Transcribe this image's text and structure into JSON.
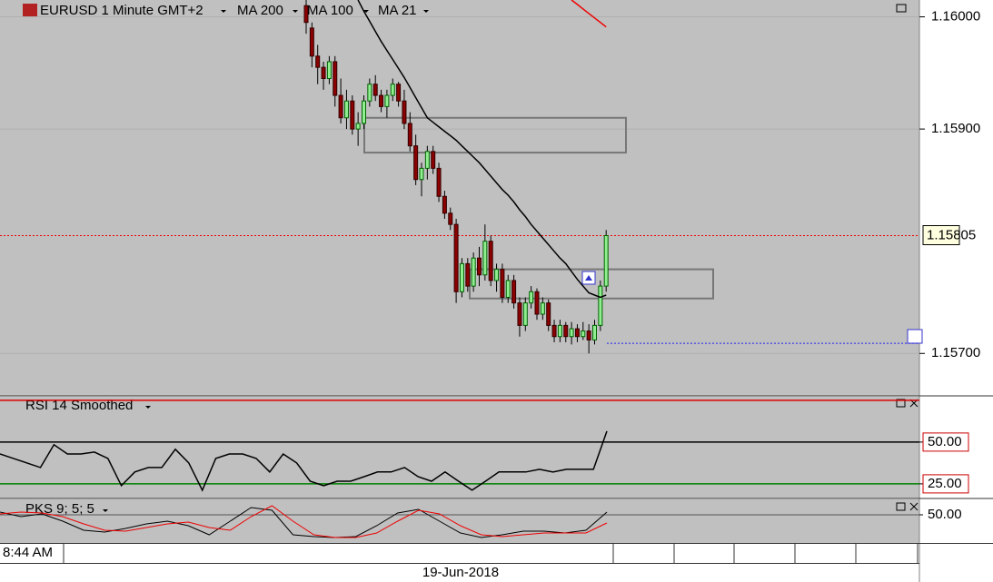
{
  "chart_data": [
    {
      "type": "candlestick",
      "title": "EURUSD 1 Minute GMT+2",
      "ohlc": [
        [
          1.1601,
          1.16015,
          1.15985,
          1.15995
        ],
        [
          1.1599,
          1.15995,
          1.15955,
          1.15965
        ],
        [
          1.15965,
          1.15975,
          1.1594,
          1.15955
        ],
        [
          1.15955,
          1.1596,
          1.15935,
          1.15945
        ],
        [
          1.15945,
          1.15965,
          1.1594,
          1.1596
        ],
        [
          1.1596,
          1.15965,
          1.1592,
          1.1593
        ],
        [
          1.1593,
          1.15945,
          1.15905,
          1.1591
        ],
        [
          1.1591,
          1.15935,
          1.159,
          1.15925
        ],
        [
          1.15925,
          1.1593,
          1.15895,
          1.159
        ],
        [
          1.159,
          1.15915,
          1.15885,
          1.15905
        ],
        [
          1.15905,
          1.1593,
          1.159,
          1.15925
        ],
        [
          1.15925,
          1.15945,
          1.1592,
          1.1594
        ],
        [
          1.1594,
          1.15948,
          1.15925,
          1.1593
        ],
        [
          1.1593,
          1.15935,
          1.15915,
          1.1592
        ],
        [
          1.1592,
          1.15935,
          1.1591,
          1.1593
        ],
        [
          1.1593,
          1.15945,
          1.15925,
          1.1594
        ],
        [
          1.1594,
          1.15942,
          1.1592,
          1.15925
        ],
        [
          1.15925,
          1.15935,
          1.159,
          1.15905
        ],
        [
          1.15905,
          1.15915,
          1.1588,
          1.15885
        ],
        [
          1.15885,
          1.15895,
          1.1585,
          1.15855
        ],
        [
          1.15855,
          1.1587,
          1.1584,
          1.15865
        ],
        [
          1.15865,
          1.15885,
          1.15855,
          1.1588
        ],
        [
          1.1588,
          1.15885,
          1.1586,
          1.15865
        ],
        [
          1.15865,
          1.1587,
          1.15835,
          1.1584
        ],
        [
          1.1584,
          1.15845,
          1.1582,
          1.15825
        ],
        [
          1.15825,
          1.1583,
          1.1581,
          1.15815
        ],
        [
          1.15815,
          1.1582,
          1.15745,
          1.15755
        ],
        [
          1.15755,
          1.15785,
          1.1575,
          1.1578
        ],
        [
          1.1578,
          1.15785,
          1.15755,
          1.1576
        ],
        [
          1.1576,
          1.1579,
          1.15755,
          1.15785
        ],
        [
          1.15785,
          1.15795,
          1.1576,
          1.1577
        ],
        [
          1.1577,
          1.15815,
          1.15765,
          1.158
        ],
        [
          1.158,
          1.15805,
          1.1576,
          1.15765
        ],
        [
          1.15765,
          1.1578,
          1.15755,
          1.15775
        ],
        [
          1.15775,
          1.1578,
          1.15745,
          1.1575
        ],
        [
          1.1575,
          1.1577,
          1.15745,
          1.15765
        ],
        [
          1.15765,
          1.1577,
          1.1574,
          1.15745
        ],
        [
          1.15745,
          1.1575,
          1.15715,
          1.15725
        ],
        [
          1.15725,
          1.1575,
          1.1572,
          1.15745
        ],
        [
          1.15745,
          1.1576,
          1.1574,
          1.15755
        ],
        [
          1.15755,
          1.15758,
          1.1573,
          1.15735
        ],
        [
          1.15735,
          1.1575,
          1.1573,
          1.15745
        ],
        [
          1.15745,
          1.15748,
          1.1572,
          1.15725
        ],
        [
          1.15725,
          1.1573,
          1.1571,
          1.15715
        ],
        [
          1.15715,
          1.1573,
          1.1571,
          1.15725
        ],
        [
          1.15725,
          1.15728,
          1.1571,
          1.15715
        ],
        [
          1.15715,
          1.15728,
          1.15708,
          1.15722
        ],
        [
          1.15722,
          1.15726,
          1.1571,
          1.15715
        ],
        [
          1.15715,
          1.15728,
          1.15712,
          1.1572
        ],
        [
          1.1572,
          1.15726,
          1.157,
          1.15712
        ],
        [
          1.15712,
          1.1573,
          1.15708,
          1.15725
        ],
        [
          1.15725,
          1.15765,
          1.1572,
          1.1576
        ],
        [
          1.1576,
          1.1581,
          1.15755,
          1.15805
        ]
      ],
      "up_color": "#90ee90",
      "down_color": "#8b0000",
      "series": [
        {
          "name": "MA 200",
          "color": "#00dd00"
        },
        {
          "name": "MA 100",
          "color": "#ee0000",
          "values": [
            null,
            null,
            null,
            null,
            null,
            null,
            null,
            null,
            null,
            null,
            null,
            null,
            null,
            null,
            null,
            null,
            null,
            null,
            null,
            null,
            null,
            null,
            null,
            null,
            null,
            null,
            null,
            null,
            null,
            null,
            null,
            null,
            null,
            null,
            null,
            null,
            null,
            null,
            null,
            null,
            null,
            null,
            null,
            null,
            null,
            null,
            1.16015,
            1.16011,
            1.16007,
            1.16003,
            1.15999,
            1.15995,
            1.15991
          ]
        },
        {
          "name": "MA 21",
          "color": "#000000",
          "values": [
            null,
            null,
            null,
            null,
            null,
            null,
            null,
            null,
            null,
            1.16015,
            1.16005,
            1.15996,
            1.15987,
            1.15978,
            1.1597,
            1.15962,
            1.15954,
            1.15946,
            1.15937,
            1.15928,
            1.15919,
            1.1591,
            1.15906,
            1.15902,
            1.15898,
            1.15894,
            1.1589,
            1.15885,
            1.1588,
            1.15875,
            1.1587,
            1.15864,
            1.15858,
            1.15852,
            1.15846,
            1.15841,
            1.15835,
            1.15828,
            1.15822,
            1.15815,
            1.15809,
            1.15803,
            1.15797,
            1.15791,
            1.15785,
            1.1578,
            1.15773,
            1.15766,
            1.1576,
            1.15754,
            1.15752,
            1.1575,
            1.15752
          ]
        }
      ],
      "ylim": [
        1.15663,
        1.16015
      ],
      "yticks": [
        {
          "value": 1.16,
          "label": "1.16000"
        },
        {
          "value": 1.159,
          "label": "1.15900"
        },
        {
          "value": 1.157,
          "label": "1.15700"
        }
      ],
      "last_price": {
        "value": 1.15805,
        "label": "1.15805"
      },
      "level": 1.15709,
      "boxes": [
        {
          "top": 1.1591,
          "bottom": 1.15879
        },
        {
          "top": 1.15775,
          "bottom": 1.15749
        }
      ],
      "time_label": "8:44 AM",
      "date_label": "19-Jun-2018"
    },
    {
      "type": "line",
      "title": "RSI 14 Smoothed",
      "values": [
        42.9,
        40.2,
        37.5,
        34.8,
        48.4,
        42.9,
        42.9,
        44.0,
        40.2,
        23.9,
        32.1,
        34.8,
        34.8,
        45.7,
        37.5,
        21.2,
        40.2,
        42.9,
        42.9,
        40.2,
        32.1,
        42.9,
        37.5,
        26.6,
        23.9,
        26.6,
        26.6,
        29.3,
        32.1,
        32.1,
        34.8,
        29.3,
        26.6,
        32.1,
        26.6,
        21.2,
        26.6,
        32.1,
        32.1,
        32.1,
        33.7,
        32.1,
        33.7,
        33.7,
        33.7,
        56.5
      ],
      "color": "#000000",
      "ylim": [
        16.8,
        77.1
      ],
      "yticks": [
        {
          "value": 50,
          "label": "50.00"
        },
        {
          "value": 25,
          "label": "25.00"
        }
      ],
      "levels": [
        {
          "value": 75,
          "color": "#dd0000"
        },
        {
          "value": 50,
          "color": "#000000"
        },
        {
          "value": 25,
          "color": "#008000"
        }
      ]
    },
    {
      "type": "line",
      "title": "PKS 9; 5; 5",
      "series": [
        {
          "color": "#000000",
          "values": [
            56,
            46,
            52,
            36,
            16,
            12,
            20,
            30,
            36,
            26,
            6,
            36,
            66,
            60,
            6,
            2,
            0,
            2,
            26,
            54,
            62,
            36,
            10,
            0,
            6,
            14,
            14,
            10,
            16,
            56
          ]
        },
        {
          "color": "#ee0000",
          "values": [
            52,
            56,
            54,
            46,
            30,
            16,
            14,
            22,
            30,
            34,
            22,
            16,
            46,
            70,
            36,
            6,
            0,
            0,
            10,
            36,
            60,
            52,
            26,
            6,
            2,
            6,
            10,
            10,
            10,
            32
          ]
        }
      ],
      "ylim": [
        -10,
        84
      ],
      "yticks": [
        {
          "value": 50,
          "label": "50.00"
        }
      ]
    }
  ]
}
